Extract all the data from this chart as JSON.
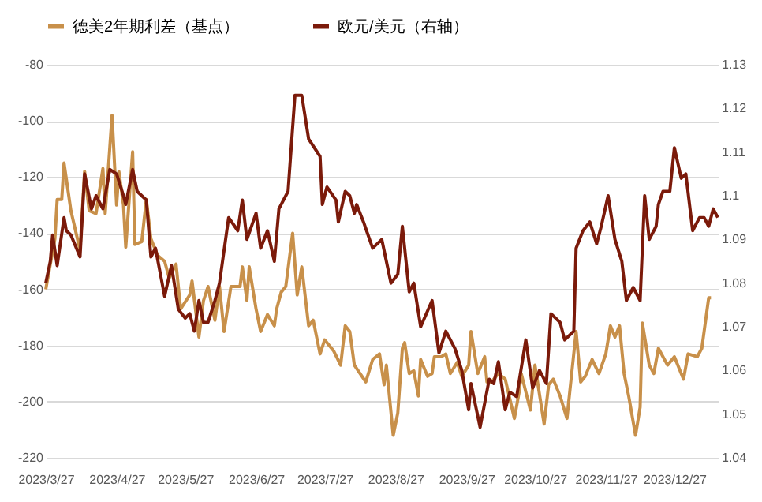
{
  "chart_data": {
    "type": "line",
    "legend": "top",
    "grid": "y",
    "marker": "none",
    "line_style": "solid",
    "xlim": [
      "2023-03-27",
      "2024-01-15"
    ],
    "xticks": [
      {
        "value": "2023-03-27",
        "label": "2023/3/27"
      },
      {
        "value": "2023-04-27",
        "label": "2023/4/27"
      },
      {
        "value": "2023-05-27",
        "label": "2023/5/27"
      },
      {
        "value": "2023-06-27",
        "label": "2023/6/27"
      },
      {
        "value": "2023-07-27",
        "label": "2023/7/27"
      },
      {
        "value": "2023-08-27",
        "label": "2023/8/27"
      },
      {
        "value": "2023-09-27",
        "label": "2023/9/27"
      },
      {
        "value": "2023-10-27",
        "label": "2023/10/27"
      },
      {
        "value": "2023-11-27",
        "label": "2023/11/27"
      },
      {
        "value": "2023-12-27",
        "label": "2023/12/27"
      }
    ],
    "ylim": [
      -220,
      -80
    ],
    "yticks": [
      -220,
      -200,
      -180,
      -160,
      -140,
      -120,
      -100,
      -80
    ],
    "y2lim": [
      1.04,
      1.13
    ],
    "y2ticks": [
      1.04,
      1.05,
      1.06,
      1.07,
      1.08,
      1.09,
      1.1,
      1.11,
      1.12,
      1.13
    ],
    "series": [
      {
        "name": "德美2年期利差（基点）",
        "color": "#c8904a",
        "x": [
          "2023-03-27",
          "2023-03-31",
          "2023-04-01",
          "2023-04-03",
          "2023-04-04",
          "2023-04-07",
          "2023-04-11",
          "2023-04-13",
          "2023-04-15",
          "2023-04-18",
          "2023-04-21",
          "2023-04-22",
          "2023-04-25",
          "2023-04-27",
          "2023-04-28",
          "2023-04-30",
          "2023-05-01",
          "2023-05-04",
          "2023-05-05",
          "2023-05-08",
          "2023-05-10",
          "2023-05-12",
          "2023-05-15",
          "2023-05-18",
          "2023-05-20",
          "2023-05-23",
          "2023-05-25",
          "2023-05-29",
          "2023-05-30",
          "2023-06-02",
          "2023-06-04",
          "2023-06-06",
          "2023-06-09",
          "2023-06-11",
          "2023-06-13",
          "2023-06-16",
          "2023-06-20",
          "2023-06-21",
          "2023-06-23",
          "2023-06-24",
          "2023-06-27",
          "2023-06-29",
          "2023-07-02",
          "2023-07-05",
          "2023-07-06",
          "2023-07-08",
          "2023-07-10",
          "2023-07-13",
          "2023-07-15",
          "2023-07-17",
          "2023-07-20",
          "2023-07-22",
          "2023-07-25",
          "2023-07-27",
          "2023-07-31",
          "2023-08-03",
          "2023-08-05",
          "2023-08-07",
          "2023-08-09",
          "2023-08-14",
          "2023-08-17",
          "2023-08-20",
          "2023-08-22",
          "2023-08-23",
          "2023-08-26",
          "2023-08-28",
          "2023-08-30",
          "2023-08-31",
          "2023-09-02",
          "2023-09-04",
          "2023-09-06",
          "2023-09-07",
          "2023-09-10",
          "2023-09-12",
          "2023-09-13",
          "2023-09-16",
          "2023-09-18",
          "2023-09-20",
          "2023-09-23",
          "2023-09-25",
          "2023-09-28",
          "2023-09-29",
          "2023-10-02",
          "2023-10-05",
          "2023-10-06",
          "2023-10-08",
          "2023-10-11",
          "2023-10-14",
          "2023-10-18",
          "2023-10-20",
          "2023-10-21",
          "2023-10-25",
          "2023-10-27",
          "2023-10-31",
          "2023-11-02",
          "2023-11-04",
          "2023-11-07",
          "2023-11-10",
          "2023-11-14",
          "2023-11-16",
          "2023-11-18",
          "2023-11-21",
          "2023-11-24",
          "2023-11-27",
          "2023-11-29",
          "2023-12-01",
          "2023-12-03",
          "2023-12-05",
          "2023-12-07",
          "2023-12-10",
          "2023-12-12",
          "2023-12-13",
          "2023-12-16",
          "2023-12-18",
          "2023-12-20",
          "2023-12-24",
          "2023-12-27",
          "2023-12-31",
          "2024-01-02",
          "2024-01-06",
          "2024-01-08",
          "2024-01-11",
          "2024-01-12"
        ],
        "values": [
          -160,
          -142,
          -128,
          -128,
          -115,
          -132,
          -146,
          -118,
          -132,
          -133,
          -117,
          -133,
          -98,
          -130,
          -118,
          -130,
          -145,
          -111,
          -144,
          -143,
          -128,
          -142,
          -148,
          -150,
          -156,
          -151,
          -167,
          -162,
          -157,
          -177,
          -164,
          -159,
          -171,
          -159,
          -175,
          -159,
          -159,
          -152,
          -164,
          -152,
          -167,
          -175,
          -169,
          -173,
          -167,
          -161,
          -159,
          -140,
          -162,
          -152,
          -173,
          -171,
          -183,
          -178,
          -182,
          -187,
          -173,
          -175,
          -187,
          -193,
          -185,
          -183,
          -194,
          -187,
          -212,
          -204,
          -181,
          -179,
          -190,
          -189,
          -198,
          -185,
          -191,
          -190,
          -184,
          -184,
          -183,
          -190,
          -186,
          -191,
          -187,
          -175,
          -190,
          -184,
          -193,
          -193,
          -190,
          -192,
          -206,
          -197,
          -190,
          -203,
          -187,
          -208,
          -194,
          -192,
          -198,
          -206,
          -175,
          -193,
          -191,
          -185,
          -190,
          -183,
          -173,
          -177,
          -173,
          -190,
          -198,
          -212,
          -202,
          -172,
          -187,
          -190,
          -181,
          -187,
          -184,
          -192,
          -183,
          -184,
          -181,
          -163,
          -163
        ]
      },
      {
        "name": "欧元/美元（右轴）",
        "color": "#7b1a0a",
        "axis": "y2",
        "x": [
          "2023-03-27",
          "2023-03-29",
          "2023-03-30",
          "2023-04-01",
          "2023-04-04",
          "2023-04-05",
          "2023-04-07",
          "2023-04-11",
          "2023-04-13",
          "2023-04-16",
          "2023-04-18",
          "2023-04-21",
          "2023-04-24",
          "2023-04-27",
          "2023-04-30",
          "2023-05-01",
          "2023-05-04",
          "2023-05-06",
          "2023-05-10",
          "2023-05-12",
          "2023-05-14",
          "2023-05-18",
          "2023-05-21",
          "2023-05-24",
          "2023-05-27",
          "2023-05-29",
          "2023-05-31",
          "2023-06-02",
          "2023-06-04",
          "2023-06-06",
          "2023-06-09",
          "2023-06-11",
          "2023-06-15",
          "2023-06-19",
          "2023-06-21",
          "2023-06-23",
          "2023-06-27",
          "2023-06-29",
          "2023-07-02",
          "2023-07-05",
          "2023-07-07",
          "2023-07-11",
          "2023-07-14",
          "2023-07-17",
          "2023-07-20",
          "2023-07-25",
          "2023-07-26",
          "2023-07-28",
          "2023-08-01",
          "2023-08-02",
          "2023-08-05",
          "2023-08-07",
          "2023-08-09",
          "2023-08-10",
          "2023-08-13",
          "2023-08-15",
          "2023-08-17",
          "2023-08-21",
          "2023-08-23",
          "2023-08-25",
          "2023-08-28",
          "2023-08-30",
          "2023-09-02",
          "2023-09-04",
          "2023-09-07",
          "2023-09-12",
          "2023-09-15",
          "2023-09-18",
          "2023-09-22",
          "2023-09-25",
          "2023-09-28",
          "2023-09-29",
          "2023-10-03",
          "2023-10-07",
          "2023-10-09",
          "2023-10-11",
          "2023-10-14",
          "2023-10-16",
          "2023-10-19",
          "2023-10-23",
          "2023-10-26",
          "2023-10-29",
          "2023-11-01",
          "2023-11-03",
          "2023-11-07",
          "2023-11-09",
          "2023-11-13",
          "2023-11-14",
          "2023-11-17",
          "2023-11-20",
          "2023-11-23",
          "2023-11-25",
          "2023-11-28",
          "2023-12-01",
          "2023-12-04",
          "2023-12-06",
          "2023-12-09",
          "2023-12-12",
          "2023-12-14",
          "2023-12-16",
          "2023-12-19",
          "2023-12-20",
          "2023-12-22",
          "2023-12-25",
          "2023-12-27",
          "2023-12-30",
          "2024-01-01",
          "2024-01-04",
          "2024-01-07",
          "2024-01-09",
          "2024-01-11",
          "2024-01-13",
          "2024-01-15"
        ],
        "values": [
          1.08,
          1.085,
          1.091,
          1.084,
          1.095,
          1.092,
          1.091,
          1.086,
          1.105,
          1.097,
          1.1,
          1.097,
          1.106,
          1.105,
          1.1,
          1.098,
          1.106,
          1.101,
          1.099,
          1.086,
          1.088,
          1.077,
          1.084,
          1.074,
          1.072,
          1.073,
          1.069,
          1.076,
          1.071,
          1.071,
          1.076,
          1.08,
          1.095,
          1.092,
          1.099,
          1.09,
          1.096,
          1.088,
          1.092,
          1.085,
          1.097,
          1.101,
          1.123,
          1.123,
          1.113,
          1.109,
          1.098,
          1.102,
          1.099,
          1.094,
          1.101,
          1.1,
          1.096,
          1.098,
          1.094,
          1.091,
          1.088,
          1.09,
          1.085,
          1.08,
          1.082,
          1.093,
          1.078,
          1.08,
          1.07,
          1.076,
          1.064,
          1.069,
          1.065,
          1.06,
          1.051,
          1.057,
          1.047,
          1.058,
          1.057,
          1.062,
          1.051,
          1.055,
          1.054,
          1.067,
          1.056,
          1.06,
          1.057,
          1.073,
          1.071,
          1.067,
          1.069,
          1.088,
          1.092,
          1.094,
          1.089,
          1.093,
          1.1,
          1.09,
          1.085,
          1.076,
          1.079,
          1.076,
          1.1,
          1.09,
          1.093,
          1.098,
          1.101,
          1.101,
          1.111,
          1.104,
          1.105,
          1.092,
          1.095,
          1.095,
          1.093,
          1.097,
          1.095
        ]
      }
    ]
  }
}
